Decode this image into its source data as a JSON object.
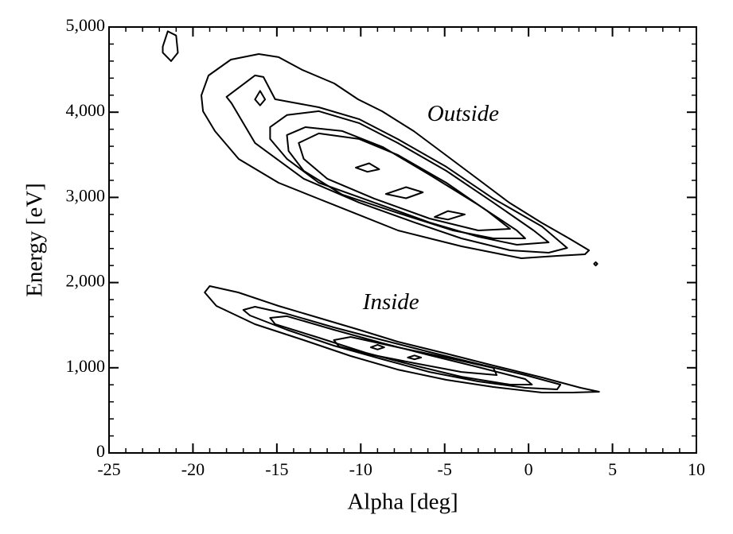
{
  "chart_data": {
    "type": "contour",
    "xlabel": "Alpha [deg]",
    "ylabel": "Energy [eV]",
    "xlim": [
      -25,
      10
    ],
    "ylim": [
      0,
      5000
    ],
    "xticks": [
      -25,
      -20,
      -15,
      -10,
      -5,
      0,
      5,
      10
    ],
    "yticks": [
      0,
      {
        "value": 1000,
        "label": "1,000"
      },
      {
        "value": 2000,
        "label": "2,000"
      },
      {
        "value": 3000,
        "label": "3,000"
      },
      {
        "value": 4000,
        "label": "4,000"
      },
      {
        "value": 5000,
        "label": "5,000"
      }
    ],
    "xminor": 1,
    "yminor": 200,
    "color": "#000000",
    "annotations": [
      {
        "text": "Outside",
        "x": -3.9,
        "y": 3960
      },
      {
        "text": "Inside",
        "x": -8.2,
        "y": 1750
      }
    ],
    "contours": [
      {
        "x": [
          -19.5,
          -19.07,
          -17.74,
          -16.08,
          -14.9,
          -13.48,
          -11.58,
          -10.16,
          -8.73,
          -6.84,
          -4.94,
          -3.04,
          -1.15,
          0.75,
          2.41,
          3.6,
          3.36,
          1.7,
          -0.43,
          -2.09,
          -3.99,
          -5.89,
          -7.78,
          -10.16,
          -12.53,
          -14.9,
          -17.27,
          -18.69,
          -19.4
        ],
        "y": [
          4198,
          4431,
          4618,
          4683,
          4646,
          4496,
          4338,
          4151,
          4011,
          3778,
          3498,
          3218,
          2938,
          2705,
          2519,
          2379,
          2332,
          2313,
          2285,
          2351,
          2425,
          2519,
          2612,
          2799,
          2985,
          3172,
          3451,
          3778,
          4011
        ]
      },
      {
        "x": [
          -18.0,
          -16.3,
          -15.8,
          -15.1,
          -12.5,
          -10.1,
          -7.8,
          -4.9,
          -2.1,
          0.8,
          2.3,
          1.2,
          -1.1,
          -4.0,
          -6.8,
          -10.1,
          -13.4,
          -16.3,
          -17.7
        ],
        "y": [
          4180,
          4432,
          4413,
          4152,
          4058,
          3919,
          3685,
          3359,
          2986,
          2659,
          2407,
          2351,
          2379,
          2519,
          2706,
          2939,
          3219,
          3639,
          4105
        ]
      },
      {
        "x": [
          -15.4,
          -14.4,
          -12.5,
          -10.1,
          -7.8,
          -4.9,
          -2.1,
          0.3,
          1.2,
          -0.7,
          -3.0,
          -5.9,
          -9.2,
          -12.5,
          -14.4,
          -15.4
        ],
        "y": [
          3826,
          3966,
          4012,
          3872,
          3639,
          3312,
          2939,
          2612,
          2472,
          2444,
          2538,
          2706,
          2939,
          3172,
          3452,
          3686
        ]
      },
      {
        "x": [
          -14.4,
          -13.3,
          -11.1,
          -8.7,
          -5.9,
          -3.0,
          -0.7,
          -0.2,
          -2.1,
          -4.5,
          -7.8,
          -11.1,
          -13.4,
          -14.3
        ],
        "y": [
          3732,
          3825,
          3779,
          3592,
          3266,
          2912,
          2612,
          2519,
          2519,
          2612,
          2818,
          3032,
          3312,
          3545
        ]
      },
      {
        "x": [
          -13.7,
          -12.5,
          -10.1,
          -7.8,
          -4.9,
          -2.5,
          -1.1,
          -3.0,
          -5.9,
          -9.2,
          -12.0,
          -13.4
        ],
        "y": [
          3639,
          3751,
          3686,
          3499,
          3172,
          2846,
          2631,
          2612,
          2752,
          2986,
          3219,
          3452
        ]
      },
      {
        "x": [
          -21.8,
          -21.5,
          -21.0,
          -20.9,
          -21.3,
          -21.8
        ],
        "y": [
          4770,
          4950,
          4900,
          4700,
          4600,
          4700
        ]
      },
      {
        "x": [
          -16.3,
          -16.0,
          -15.7,
          -16.0
        ],
        "y": [
          4150,
          4250,
          4150,
          4080
        ]
      },
      {
        "x": [
          -10.3,
          -9.5,
          -8.9,
          -9.6
        ],
        "y": [
          3350,
          3400,
          3330,
          3300
        ]
      },
      {
        "x": [
          -8.5,
          -7.3,
          -6.3,
          -7.3
        ],
        "y": [
          3040,
          3120,
          3060,
          2990
        ]
      },
      {
        "x": [
          -5.6,
          -4.8,
          -3.8,
          -4.8
        ],
        "y": [
          2770,
          2840,
          2800,
          2740
        ]
      },
      {
        "x": [
          3.9,
          4.0,
          4.1,
          4.0
        ],
        "y": [
          2220,
          2240,
          2220,
          2200
        ]
      },
      {
        "x": [
          -19.3,
          -19.0,
          -17.3,
          -14.9,
          -12.5,
          -10.1,
          -7.8,
          -4.9,
          -2.1,
          0.8,
          3.1,
          4.2,
          2.6,
          0.8,
          -2.1,
          -4.9,
          -7.8,
          -10.6,
          -13.4,
          -16.3,
          -18.6
        ],
        "y": [
          1884,
          1959,
          1884,
          1726,
          1586,
          1446,
          1306,
          1166,
          1026,
          886,
          765,
          718,
          709,
          709,
          774,
          858,
          979,
          1138,
          1325,
          1511,
          1726
        ]
      },
      {
        "x": [
          -17.0,
          -16.3,
          -14.4,
          -11.6,
          -8.7,
          -5.9,
          -3.0,
          -0.2,
          1.9,
          1.7,
          -0.2,
          -3.0,
          -5.9,
          -8.7,
          -11.6,
          -14.4,
          -16.6
        ],
        "y": [
          1679,
          1716,
          1633,
          1474,
          1325,
          1185,
          1045,
          914,
          802,
          746,
          765,
          840,
          951,
          1100,
          1259,
          1446,
          1614
        ]
      },
      {
        "x": [
          -15.4,
          -14.4,
          -11.6,
          -8.7,
          -5.9,
          -3.0,
          -0.2,
          0.2,
          -1.1,
          -4.0,
          -6.8,
          -9.7,
          -12.5,
          -15.1
        ],
        "y": [
          1586,
          1605,
          1446,
          1288,
          1147,
          1007,
          868,
          802,
          802,
          895,
          1026,
          1175,
          1353,
          1512
        ]
      },
      {
        "x": [
          -11.6,
          -10.6,
          -7.8,
          -4.9,
          -2.1,
          -1.9,
          -4.0,
          -6.8,
          -9.7,
          -11.3
        ],
        "y": [
          1325,
          1362,
          1241,
          1119,
          998,
          914,
          951,
          1054,
          1166,
          1250
        ]
      },
      {
        "x": [
          -9.4,
          -9.0,
          -8.6,
          -9.0
        ],
        "y": [
          1240,
          1270,
          1240,
          1215
        ]
      },
      {
        "x": [
          -7.2,
          -6.8,
          -6.4,
          -6.8
        ],
        "y": [
          1120,
          1145,
          1120,
          1100
        ]
      }
    ]
  }
}
